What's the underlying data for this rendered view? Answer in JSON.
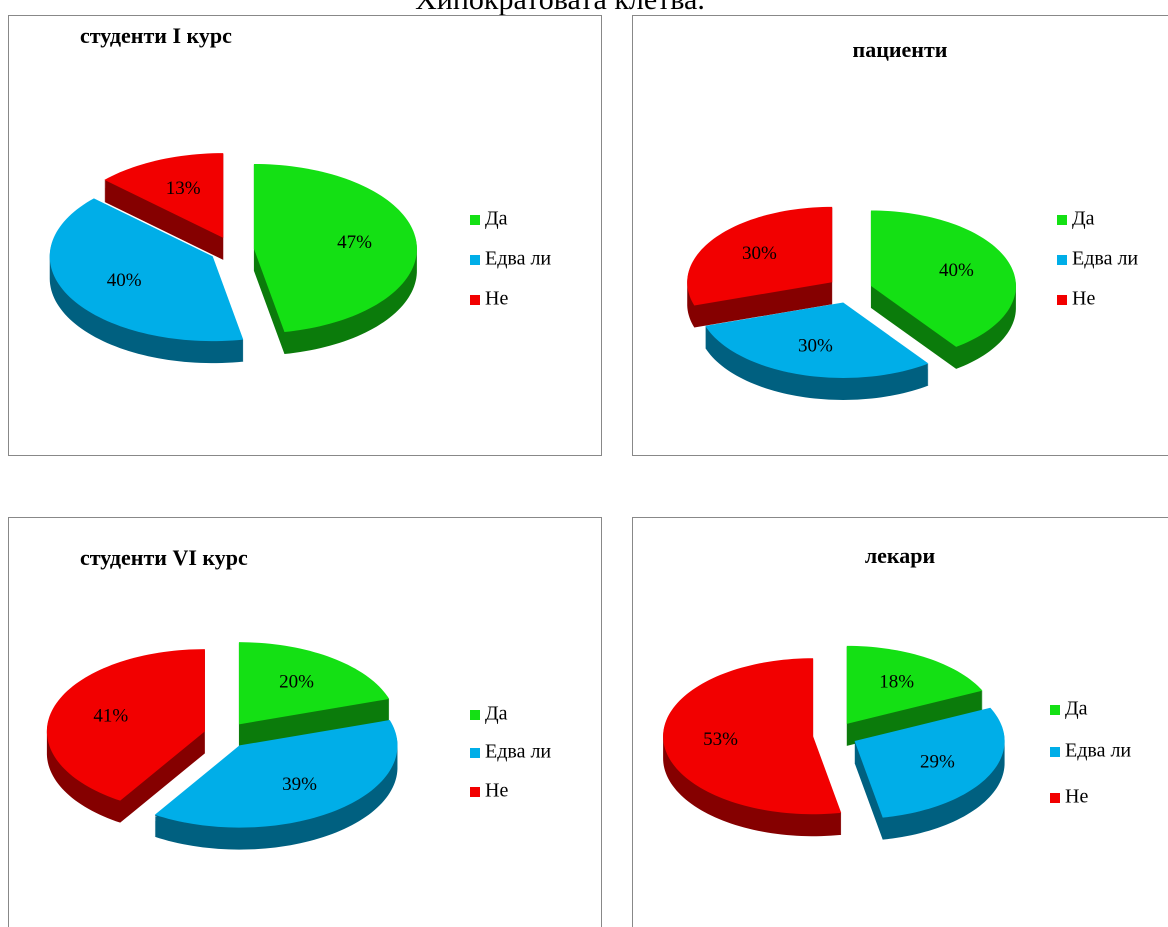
{
  "heading": "Хипократовата клетва.",
  "chart_data": [
    {
      "type": "pie",
      "title": "студенти I курс",
      "categories": [
        "Да",
        "Едва ли",
        "Не"
      ],
      "values": [
        47,
        40,
        13
      ],
      "value_labels": [
        "47%",
        "40%",
        "13%"
      ],
      "colors": [
        "#14e014",
        "#00aee8",
        "#f20000"
      ],
      "legend": "right"
    },
    {
      "type": "pie",
      "title": "пациенти",
      "categories": [
        "Да",
        "Едва ли",
        "Не"
      ],
      "values": [
        40,
        30,
        30
      ],
      "value_labels": [
        "40%",
        "30%",
        "30%"
      ],
      "colors": [
        "#14e014",
        "#00aee8",
        "#f20000"
      ],
      "legend": "right"
    },
    {
      "type": "pie",
      "title": "студенти VI курс",
      "categories": [
        "Да",
        "Едва ли",
        "Не"
      ],
      "values": [
        20,
        39,
        41
      ],
      "value_labels": [
        "20%",
        "39%",
        "41%"
      ],
      "colors": [
        "#14e014",
        "#00aee8",
        "#f20000"
      ],
      "legend": "right"
    },
    {
      "type": "pie",
      "title": "лекари",
      "categories": [
        "Да",
        "Едва ли",
        "Не"
      ],
      "values": [
        18,
        29,
        53
      ],
      "value_labels": [
        "18%",
        "29%",
        "53%"
      ],
      "colors": [
        "#14e014",
        "#00aee8",
        "#f20000"
      ],
      "legend": "right"
    }
  ]
}
